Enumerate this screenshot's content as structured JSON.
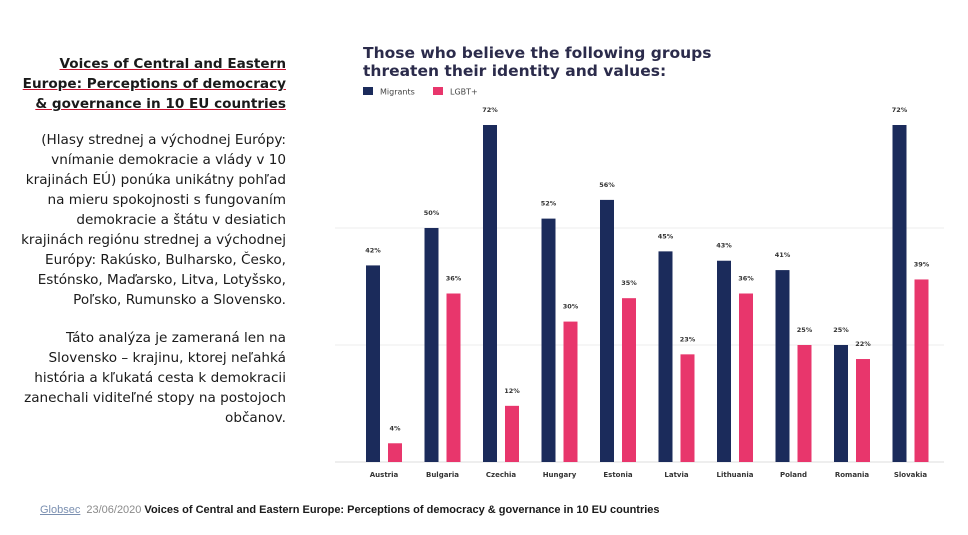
{
  "left_panel": {
    "title": "Voices of Central and Eastern Europe: Perceptions of democracy & governance in 10 EU countries",
    "paragraph1": "(Hlasy strednej a východnej Európy: vnímanie demokracie a vlády v 10 krajinách EÚ) ponúka unikátny pohľad na mieru spokojnosti s fungovaním demokracie a štátu v desiatich krajinách regiónu strednej a východnej Európy: Rakúsko, Bulharsko, Česko, Estónsko, Maďarsko, Litva, Lotyšsko, Poľsko, Rumunsko a Slovensko.",
    "paragraph2": "Táto analýza je zameraná len na Slovensko – krajinu, ktorej neľahká história a kľukatá cesta k demokracii zanechali viditeľné stopy na postojoch občanov."
  },
  "footer": {
    "org": "Globsec",
    "date": "23/06/2020",
    "title": "Voices of Central and Eastern Europe: Perceptions of democracy & governance in 10 EU countries"
  },
  "chart_data": {
    "type": "bar",
    "title": "Those who believe the following groups threaten their identity and values:",
    "categories": [
      "Austria",
      "Bulgaria",
      "Czechia",
      "Hungary",
      "Estonia",
      "Latvia",
      "Lithuania",
      "Poland",
      "Romania",
      "Slovakia"
    ],
    "series": [
      {
        "name": "Migrants",
        "color": "#1b2b5b",
        "values": [
          42,
          50,
          72,
          52,
          56,
          45,
          43,
          41,
          25,
          72
        ]
      },
      {
        "name": "LGBT+",
        "color": "#e8366c",
        "values": [
          4,
          36,
          12,
          30,
          35,
          23,
          36,
          25,
          22,
          39
        ]
      }
    ],
    "data_labels": {
      "Migrants": [
        "42%",
        "50%",
        "72%",
        "52%",
        "56%",
        "45%",
        "43%",
        "41%",
        "25%",
        "72%"
      ],
      "LGBT+": [
        "4%",
        "36%",
        "12%",
        "30%",
        "35%",
        "23%",
        "36%",
        "25%",
        "22%",
        "39%"
      ]
    },
    "legend_position": "top-left",
    "ylim": [
      0,
      72
    ],
    "grid": true
  }
}
